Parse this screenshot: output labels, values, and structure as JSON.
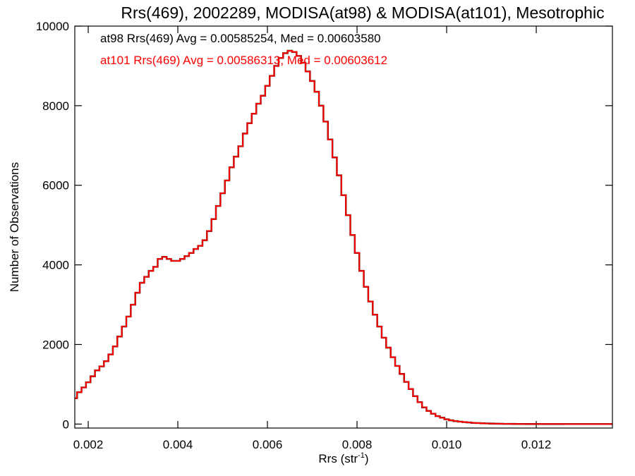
{
  "chart_data": {
    "type": "line",
    "title": "Rrs(469), 2002289, MODISA(at98) & MODISA(at101), Mesotrophic",
    "xlabel": "Rrs (str",
    "xlabel_sup": "-1",
    "xlabel_close": ")",
    "ylabel": "Number of Observations",
    "xlim": [
      0.0017,
      0.0137
    ],
    "ylim": [
      -100,
      10000
    ],
    "x_ticks": [
      0.002,
      0.004,
      0.006,
      0.008,
      0.01,
      0.012
    ],
    "x_tick_labels": [
      "0.002",
      "0.004",
      "0.006",
      "0.008",
      "0.010",
      "0.012"
    ],
    "y_ticks": [
      0,
      2000,
      4000,
      6000,
      8000,
      10000
    ],
    "y_tick_labels": [
      "0",
      "2000",
      "4000",
      "6000",
      "8000",
      "10000"
    ],
    "grid": false,
    "legend_position": "top-left",
    "x": [
      0.0017,
      0.0018,
      0.0019,
      0.002,
      0.0021,
      0.0022,
      0.0023,
      0.0024,
      0.0025,
      0.0026,
      0.0027,
      0.0028,
      0.0029,
      0.003,
      0.0031,
      0.0032,
      0.0033,
      0.0034,
      0.0035,
      0.0036,
      0.0037,
      0.0038,
      0.0039,
      0.004,
      0.0041,
      0.0042,
      0.0043,
      0.0044,
      0.0045,
      0.0046,
      0.0047,
      0.0048,
      0.0049,
      0.005,
      0.0051,
      0.0052,
      0.0053,
      0.0054,
      0.0055,
      0.0056,
      0.0057,
      0.0058,
      0.0059,
      0.006,
      0.0061,
      0.0062,
      0.0063,
      0.0064,
      0.0065,
      0.0066,
      0.0067,
      0.0068,
      0.0069,
      0.007,
      0.0071,
      0.0072,
      0.0073,
      0.0074,
      0.0075,
      0.0076,
      0.0077,
      0.0078,
      0.0079,
      0.008,
      0.0081,
      0.0082,
      0.0083,
      0.0084,
      0.0085,
      0.0086,
      0.0087,
      0.0088,
      0.0089,
      0.009,
      0.0091,
      0.0092,
      0.0093,
      0.0094,
      0.0095,
      0.0096,
      0.0097,
      0.0098,
      0.0099,
      0.01,
      0.0101,
      0.0102,
      0.0103,
      0.0104,
      0.0105,
      0.0106,
      0.0107,
      0.0108,
      0.0109,
      0.011,
      0.0111,
      0.0112,
      0.0113,
      0.0114,
      0.0115,
      0.0116,
      0.0117,
      0.0118,
      0.0119,
      0.012,
      0.0121,
      0.0122,
      0.0123,
      0.0124,
      0.0125,
      0.0126,
      0.0127,
      0.0128,
      0.0129,
      0.013,
      0.0131,
      0.0132,
      0.0133,
      0.0134,
      0.0135,
      0.0136,
      0.0137
    ],
    "series": [
      {
        "name": "at98",
        "color": "#000000",
        "values": [
          650,
          800,
          920,
          1050,
          1200,
          1350,
          1450,
          1580,
          1750,
          1950,
          2200,
          2450,
          2700,
          3000,
          3300,
          3550,
          3700,
          3850,
          3950,
          4150,
          4200,
          4150,
          4100,
          4100,
          4150,
          4220,
          4300,
          4400,
          4480,
          4620,
          4850,
          5150,
          5480,
          5800,
          6120,
          6450,
          6720,
          6980,
          7300,
          7560,
          7800,
          8050,
          8250,
          8500,
          8750,
          9000,
          9200,
          9320,
          9380,
          9350,
          9250,
          9080,
          8860,
          8620,
          8350,
          8000,
          7600,
          7150,
          6700,
          6250,
          5750,
          5250,
          4750,
          4300,
          3850,
          3450,
          3080,
          2750,
          2450,
          2170,
          1920,
          1680,
          1460,
          1260,
          1060,
          880,
          700,
          550,
          420,
          330,
          260,
          200,
          160,
          120,
          95,
          75,
          60,
          50,
          40,
          30,
          25,
          20,
          16,
          13,
          10,
          8,
          6,
          5,
          4,
          3,
          3,
          2,
          2,
          2,
          1,
          1,
          1,
          1,
          1,
          1,
          0,
          0,
          0,
          0,
          0,
          0,
          0,
          0,
          0,
          0,
          0
        ],
        "label_text": "at98 Rrs(469) Avg = 0.00585254, Med = 0.00603580"
      },
      {
        "name": "at101",
        "color": "#ff0000",
        "values": [
          650,
          800,
          920,
          1050,
          1200,
          1350,
          1450,
          1580,
          1750,
          1950,
          2200,
          2450,
          2700,
          3000,
          3300,
          3550,
          3700,
          3850,
          3950,
          4150,
          4200,
          4150,
          4100,
          4100,
          4150,
          4220,
          4300,
          4400,
          4480,
          4620,
          4850,
          5150,
          5480,
          5800,
          6120,
          6450,
          6720,
          6980,
          7300,
          7560,
          7800,
          8050,
          8250,
          8500,
          8750,
          9000,
          9200,
          9320,
          9380,
          9350,
          9250,
          9080,
          8860,
          8620,
          8350,
          8000,
          7600,
          7150,
          6700,
          6250,
          5750,
          5250,
          4750,
          4300,
          3850,
          3450,
          3080,
          2750,
          2450,
          2170,
          1920,
          1680,
          1460,
          1260,
          1060,
          880,
          700,
          550,
          420,
          330,
          260,
          200,
          160,
          120,
          95,
          75,
          60,
          50,
          40,
          30,
          25,
          20,
          16,
          13,
          10,
          8,
          6,
          5,
          4,
          3,
          3,
          2,
          2,
          2,
          1,
          1,
          1,
          1,
          1,
          1,
          0,
          0,
          0,
          0,
          0,
          0,
          0,
          0,
          0,
          0,
          0
        ],
        "label_text": "at101 Rrs(469) Avg = 0.00586313, Med = 0.00603612"
      }
    ]
  }
}
